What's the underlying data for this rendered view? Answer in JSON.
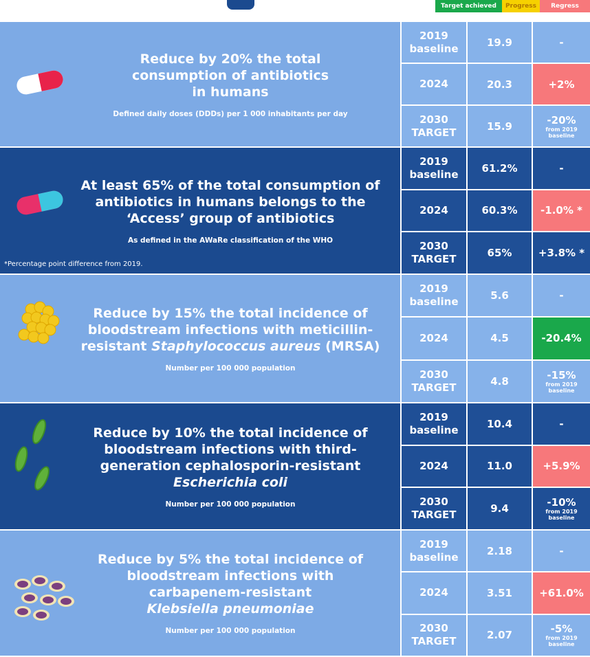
{
  "legend": [
    {
      "label": "Target achieved",
      "status": "achieved"
    },
    {
      "label": "Progress",
      "status": "progress"
    },
    {
      "label": "Regress",
      "status": "regress"
    }
  ],
  "sections": [
    {
      "theme": "light",
      "title_lines": [
        [
          {
            "text": "Reduce by 20% the total"
          }
        ],
        [
          {
            "text": "consumption of antibiotics"
          }
        ],
        [
          {
            "text": "in humans"
          }
        ]
      ],
      "subtitle": "Defined daily doses (DDDs) per 1 000 inhabitants per day",
      "rows": [
        {
          "year": "2019 baseline",
          "value": "19.9",
          "change": "-"
        },
        {
          "year": "2024",
          "value": "20.3",
          "change": "+2%",
          "status": "regress"
        },
        {
          "year": "2030 TARGET",
          "value": "15.9",
          "change": "-20%",
          "change_note": "from 2019 baseline"
        }
      ]
    },
    {
      "theme": "dark",
      "title_lines": [
        [
          {
            "text": "At least 65% of the total consumption of"
          }
        ],
        [
          {
            "text": "antibiotics in humans belongs to the"
          }
        ],
        [
          {
            "text": "‘Access’ group of antibiotics"
          }
        ]
      ],
      "subtitle": "As defined in the AWaRe classification of the WHO",
      "note": "*Percentage point difference from 2019.",
      "rows": [
        {
          "year": "2019 baseline",
          "value": "61.2%",
          "change": "-"
        },
        {
          "year": "2024",
          "value": "60.3%",
          "change": "-1.0% *",
          "status": "regress"
        },
        {
          "year": "2030 TARGET",
          "value": "65%",
          "change": "+3.8% *"
        }
      ]
    },
    {
      "theme": "light",
      "title_lines": [
        [
          {
            "text": "Reduce by 15% the total incidence of"
          }
        ],
        [
          {
            "text": "bloodstream infections with meticillin-"
          }
        ],
        [
          {
            "text": "resistant "
          },
          {
            "text": "Staphylococcus aureus",
            "italic": true
          },
          {
            "text": " (MRSA)"
          }
        ]
      ],
      "subtitle": "Number per 100 000 population",
      "rows": [
        {
          "year": "2019 baseline",
          "value": "5.6",
          "change": "-"
        },
        {
          "year": "2024",
          "value": "4.5",
          "change": "-20.4%",
          "status": "achieved"
        },
        {
          "year": "2030 TARGET",
          "value": "4.8",
          "change": "-15%",
          "change_note": "from 2019 baseline"
        }
      ]
    },
    {
      "theme": "dark",
      "title_lines": [
        [
          {
            "text": "Reduce by 10% the total incidence of"
          }
        ],
        [
          {
            "text": "bloodstream infections with third-"
          }
        ],
        [
          {
            "text": "generation cephalosporin-resistant"
          }
        ],
        [
          {
            "text": "Escherichia coli",
            "italic": true
          }
        ]
      ],
      "subtitle": "Number per 100 000 population",
      "rows": [
        {
          "year": "2019 baseline",
          "value": "10.4",
          "change": "-"
        },
        {
          "year": "2024",
          "value": "11.0",
          "change": "+5.9%",
          "status": "regress"
        },
        {
          "year": "2030 TARGET",
          "value": "9.4",
          "change": "-10%",
          "change_note": "from 2019 baseline"
        }
      ]
    },
    {
      "theme": "light",
      "title_lines": [
        [
          {
            "text": "Reduce by 5% the total incidence of"
          }
        ],
        [
          {
            "text": "bloodstream infections with"
          }
        ],
        [
          {
            "text": "carbapenem-resistant"
          }
        ],
        [
          {
            "text": "Klebsiella pneumoniae",
            "italic": true
          }
        ]
      ],
      "subtitle": "Number per 100 000 population",
      "rows": [
        {
          "year": "2019 baseline",
          "value": "2.18",
          "change": "-"
        },
        {
          "year": "2024",
          "value": "3.51",
          "change": "+61.0%",
          "status": "regress"
        },
        {
          "year": "2030 TARGET",
          "value": "2.07",
          "change": "-5%",
          "change_note": "from 2019 baseline"
        }
      ]
    }
  ]
}
